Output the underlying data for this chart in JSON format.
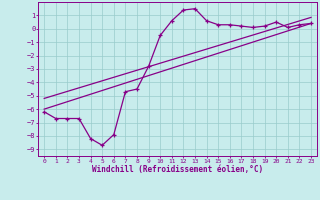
{
  "xlabel": "Windchill (Refroidissement éolien,°C)",
  "bg_color": "#c8ecec",
  "line_color": "#880088",
  "grid_color": "#99cccc",
  "xlim": [
    -0.5,
    23.5
  ],
  "ylim": [
    -9.5,
    2.0
  ],
  "xticks": [
    0,
    1,
    2,
    3,
    4,
    5,
    6,
    7,
    8,
    9,
    10,
    11,
    12,
    13,
    14,
    15,
    16,
    17,
    18,
    19,
    20,
    21,
    22,
    23
  ],
  "yticks": [
    1,
    0,
    -1,
    -2,
    -3,
    -4,
    -5,
    -6,
    -7,
    -8,
    -9
  ],
  "line1_x": [
    0,
    1,
    2,
    3,
    4,
    5,
    6,
    7,
    8,
    9,
    10,
    11,
    12,
    13,
    14,
    15,
    16,
    17,
    18,
    19,
    20,
    21,
    22,
    23
  ],
  "line1_y": [
    -6.2,
    -6.7,
    -6.7,
    -6.7,
    -8.2,
    -8.7,
    -7.9,
    -4.7,
    -4.5,
    -2.8,
    -0.5,
    0.6,
    1.4,
    1.5,
    0.6,
    0.3,
    0.3,
    0.2,
    0.1,
    0.2,
    0.5,
    0.1,
    0.3,
    0.4
  ],
  "line3_x": [
    0,
    23
  ],
  "line3_y": [
    -6.0,
    0.4
  ],
  "line4_x": [
    0,
    23
  ],
  "line4_y": [
    -5.2,
    0.85
  ]
}
